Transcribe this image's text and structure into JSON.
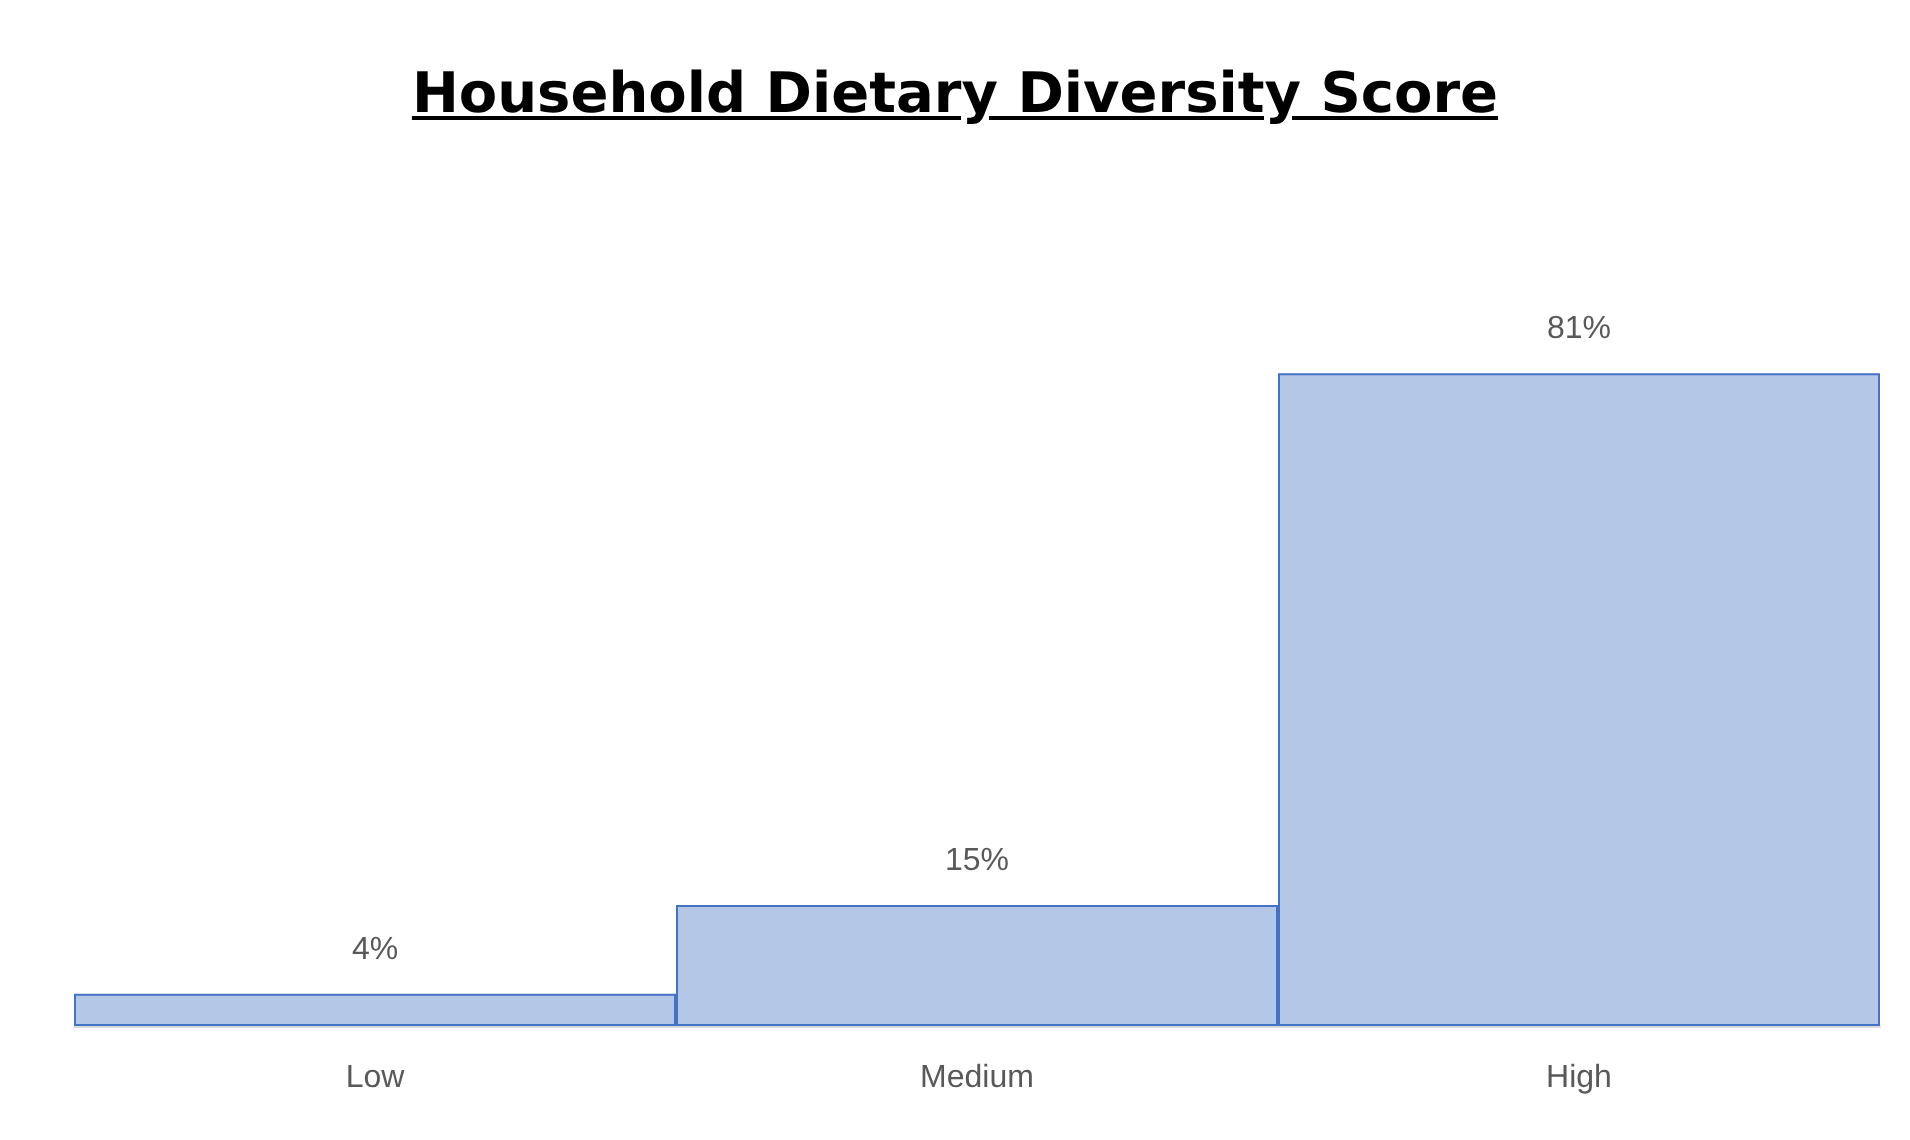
{
  "chart_data": {
    "type": "bar",
    "title": "Household Dietary Diversity Score",
    "categories": [
      "Low",
      "Medium",
      "High"
    ],
    "values": [
      4,
      15,
      81
    ],
    "value_labels": [
      "4%",
      "15%",
      "81%"
    ],
    "color": "#b4c7e7"
  }
}
